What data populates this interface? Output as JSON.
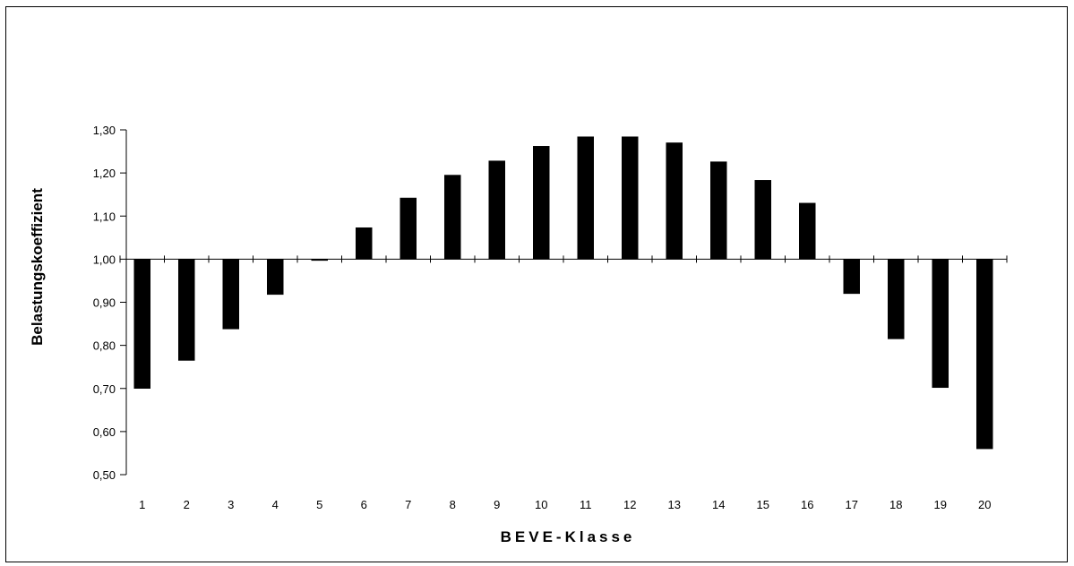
{
  "chart_data": {
    "type": "bar",
    "title": "",
    "xlabel": "BEVE-Klasse",
    "ylabel": "Belastungskoeffizient",
    "categories": [
      "1",
      "2",
      "3",
      "4",
      "5",
      "6",
      "7",
      "8",
      "9",
      "10",
      "11",
      "12",
      "13",
      "14",
      "15",
      "16",
      "17",
      "18",
      "19",
      "20"
    ],
    "values": [
      0.7,
      0.765,
      0.838,
      0.918,
      0.997,
      1.073,
      1.142,
      1.195,
      1.228,
      1.262,
      1.284,
      1.284,
      1.27,
      1.226,
      1.183,
      1.13,
      0.92,
      0.815,
      0.702,
      0.56
    ],
    "baseline": 1.0,
    "ylim": [
      0.5,
      1.3
    ],
    "yticks": [
      "0,50",
      "0,60",
      "0,70",
      "0,80",
      "0,90",
      "1,00",
      "1,10",
      "1,20",
      "1,30"
    ],
    "ytick_values": [
      0.5,
      0.6,
      0.7,
      0.8,
      0.9,
      1.0,
      1.1,
      1.2,
      1.3
    ],
    "grid": false,
    "legend": "none",
    "bar_color": "#000000"
  }
}
